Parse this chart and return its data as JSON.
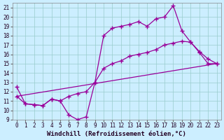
{
  "xlabel": "Windchill (Refroidissement éolien,°C)",
  "background_color": "#cceeff",
  "line_color": "#990099",
  "grid_color": "#99cccc",
  "xlim": [
    -0.5,
    23.5
  ],
  "ylim": [
    9,
    21.5
  ],
  "xticks": [
    0,
    1,
    2,
    3,
    4,
    5,
    6,
    7,
    8,
    9,
    10,
    11,
    12,
    13,
    14,
    15,
    16,
    17,
    18,
    19,
    20,
    21,
    22,
    23
  ],
  "yticks": [
    9,
    10,
    11,
    12,
    13,
    14,
    15,
    16,
    17,
    18,
    19,
    20,
    21
  ],
  "line1_x": [
    0,
    1,
    2,
    3,
    4,
    5,
    6,
    7,
    8,
    9,
    10,
    11,
    12,
    13,
    14,
    15,
    16,
    17,
    18,
    19,
    20,
    21,
    22,
    23
  ],
  "line1_y": [
    12.5,
    10.7,
    10.6,
    10.5,
    11.2,
    11.0,
    9.5,
    9.0,
    9.3,
    13.0,
    18.0,
    18.8,
    19.0,
    19.2,
    19.5,
    19.0,
    19.8,
    20.0,
    21.2,
    18.5,
    17.3,
    16.2,
    15.0,
    15.0
  ],
  "line2_x": [
    0,
    1,
    2,
    3,
    4,
    5,
    6,
    7,
    8,
    9,
    10,
    11,
    12,
    13,
    14,
    15,
    16,
    17,
    18,
    19,
    20,
    21,
    22,
    23
  ],
  "line2_y": [
    11.5,
    10.7,
    10.6,
    10.5,
    11.2,
    11.0,
    11.5,
    11.8,
    12.0,
    13.0,
    14.5,
    15.0,
    15.3,
    15.8,
    16.0,
    16.2,
    16.5,
    17.0,
    17.2,
    17.4,
    17.3,
    16.3,
    15.5,
    15.0
  ],
  "line3_x": [
    0,
    23
  ],
  "line3_y": [
    11.5,
    15.0
  ],
  "marker": "+",
  "markersize": 4,
  "linewidth": 0.9,
  "xlabel_fontsize": 6.5,
  "tick_fontsize": 5.5
}
